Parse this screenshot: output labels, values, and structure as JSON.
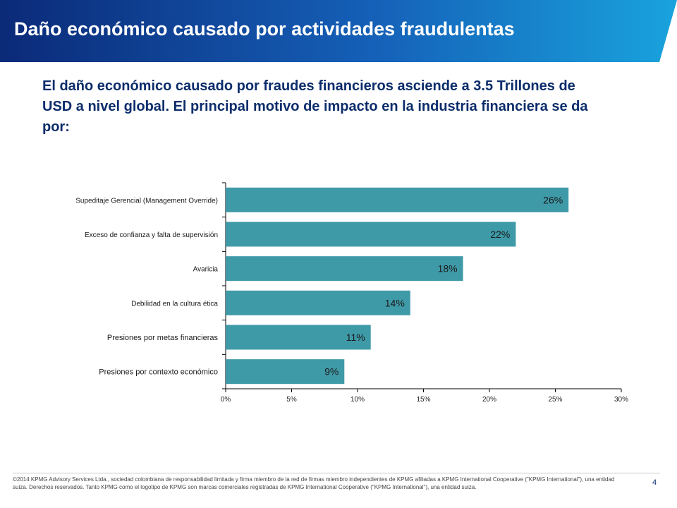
{
  "header": {
    "title": "Daño económico causado por actividades fraudulentas"
  },
  "subtitle": "El daño económico causado por fraudes financieros asciende a 3.5 Trillones de USD a nivel global. El principal motivo de impacto en la industria financiera se da por:",
  "colors": {
    "header_start": "#0b2a78",
    "header_end": "#19a3dd",
    "bar": "#3f9aa8",
    "title_text": "#0c2d6b"
  },
  "chart_data": {
    "type": "bar",
    "orientation": "horizontal",
    "categories": [
      "Supeditaje Gerencial (Management Override)",
      "Exceso de confianza y falta de supervisión",
      "Avaricia",
      "Debilidad en la cultura ética",
      "Presiones por metas financieras",
      "Presiones por contexto económico"
    ],
    "values": [
      26,
      22,
      18,
      14,
      11,
      9
    ],
    "data_labels": [
      "26%",
      "22%",
      "18%",
      "14%",
      "11%",
      "9%"
    ],
    "xlim": [
      0,
      30
    ],
    "x_ticks": [
      0,
      5,
      10,
      15,
      20,
      25,
      30
    ],
    "x_tick_labels": [
      "0%",
      "5%",
      "10%",
      "15%",
      "20%",
      "25%",
      "30%"
    ],
    "grid": false,
    "legend": "none"
  },
  "footer": {
    "text": "©2014 KPMG Advisory Services Ltda., sociedad colombiana de responsabilidad limitada y firma miembro de la red de firmas miembro independientes de KPMG afiliadas a KPMG International Cooperative (\"KPMG International\"), una entidad suiza. Derechos reservados. Tanto KPMG como el logotipo de KPMG son marcas comerciales registradas de KPMG International Cooperative (\"KPMG International\"), una entidad suiza.",
    "page_number": "4"
  }
}
